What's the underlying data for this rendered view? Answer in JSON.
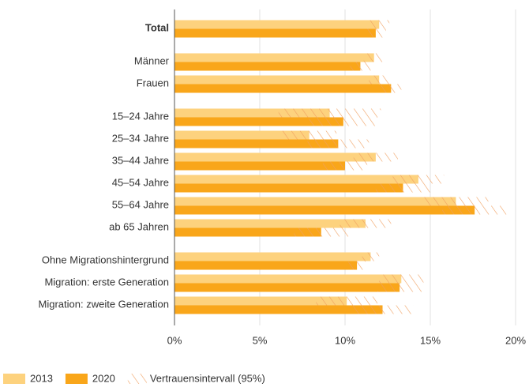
{
  "chart_data": {
    "type": "bar",
    "orientation": "horizontal",
    "categories": [
      "Total",
      "Männer",
      "Frauen",
      "15–24 Jahre",
      "25–34 Jahre",
      "35–44 Jahre",
      "45–54 Jahre",
      "55–64 Jahre",
      "ab 65 Jahren",
      "Ohne Migrationshintergrund",
      "Migration: erste Generation",
      "Migration: zweite Generation"
    ],
    "series": [
      {
        "name": "2013",
        "color": "#fdd27e",
        "values": [
          12.0,
          11.7,
          12.0,
          9.1,
          7.9,
          11.8,
          14.3,
          16.5,
          11.2,
          11.5,
          13.3,
          10.1
        ],
        "errors": [
          0.6,
          0.6,
          0.6,
          3.0,
          1.6,
          1.3,
          1.5,
          1.9,
          1.5,
          0.5,
          1.3,
          1.8
        ]
      },
      {
        "name": "2020",
        "color": "#f9a61a",
        "values": [
          11.8,
          10.9,
          12.7,
          9.9,
          9.6,
          10.0,
          13.4,
          17.6,
          8.6,
          10.7,
          13.2,
          12.2
        ],
        "errors": [
          0.6,
          0.6,
          0.6,
          2.0,
          1.8,
          1.3,
          1.6,
          1.9,
          1.6,
          0.5,
          1.3,
          1.8
        ]
      }
    ],
    "ci_label": "Vertrauensintervall (95%)",
    "ci_color": "#f0a060",
    "xlim": [
      0,
      20
    ],
    "xticks": [
      {
        "value": 0,
        "label": "0%"
      },
      {
        "value": 5,
        "label": "5%"
      },
      {
        "value": 10,
        "label": "10%"
      },
      {
        "value": 15,
        "label": "15%"
      },
      {
        "value": 20,
        "label": "20%"
      }
    ],
    "grid": true
  }
}
